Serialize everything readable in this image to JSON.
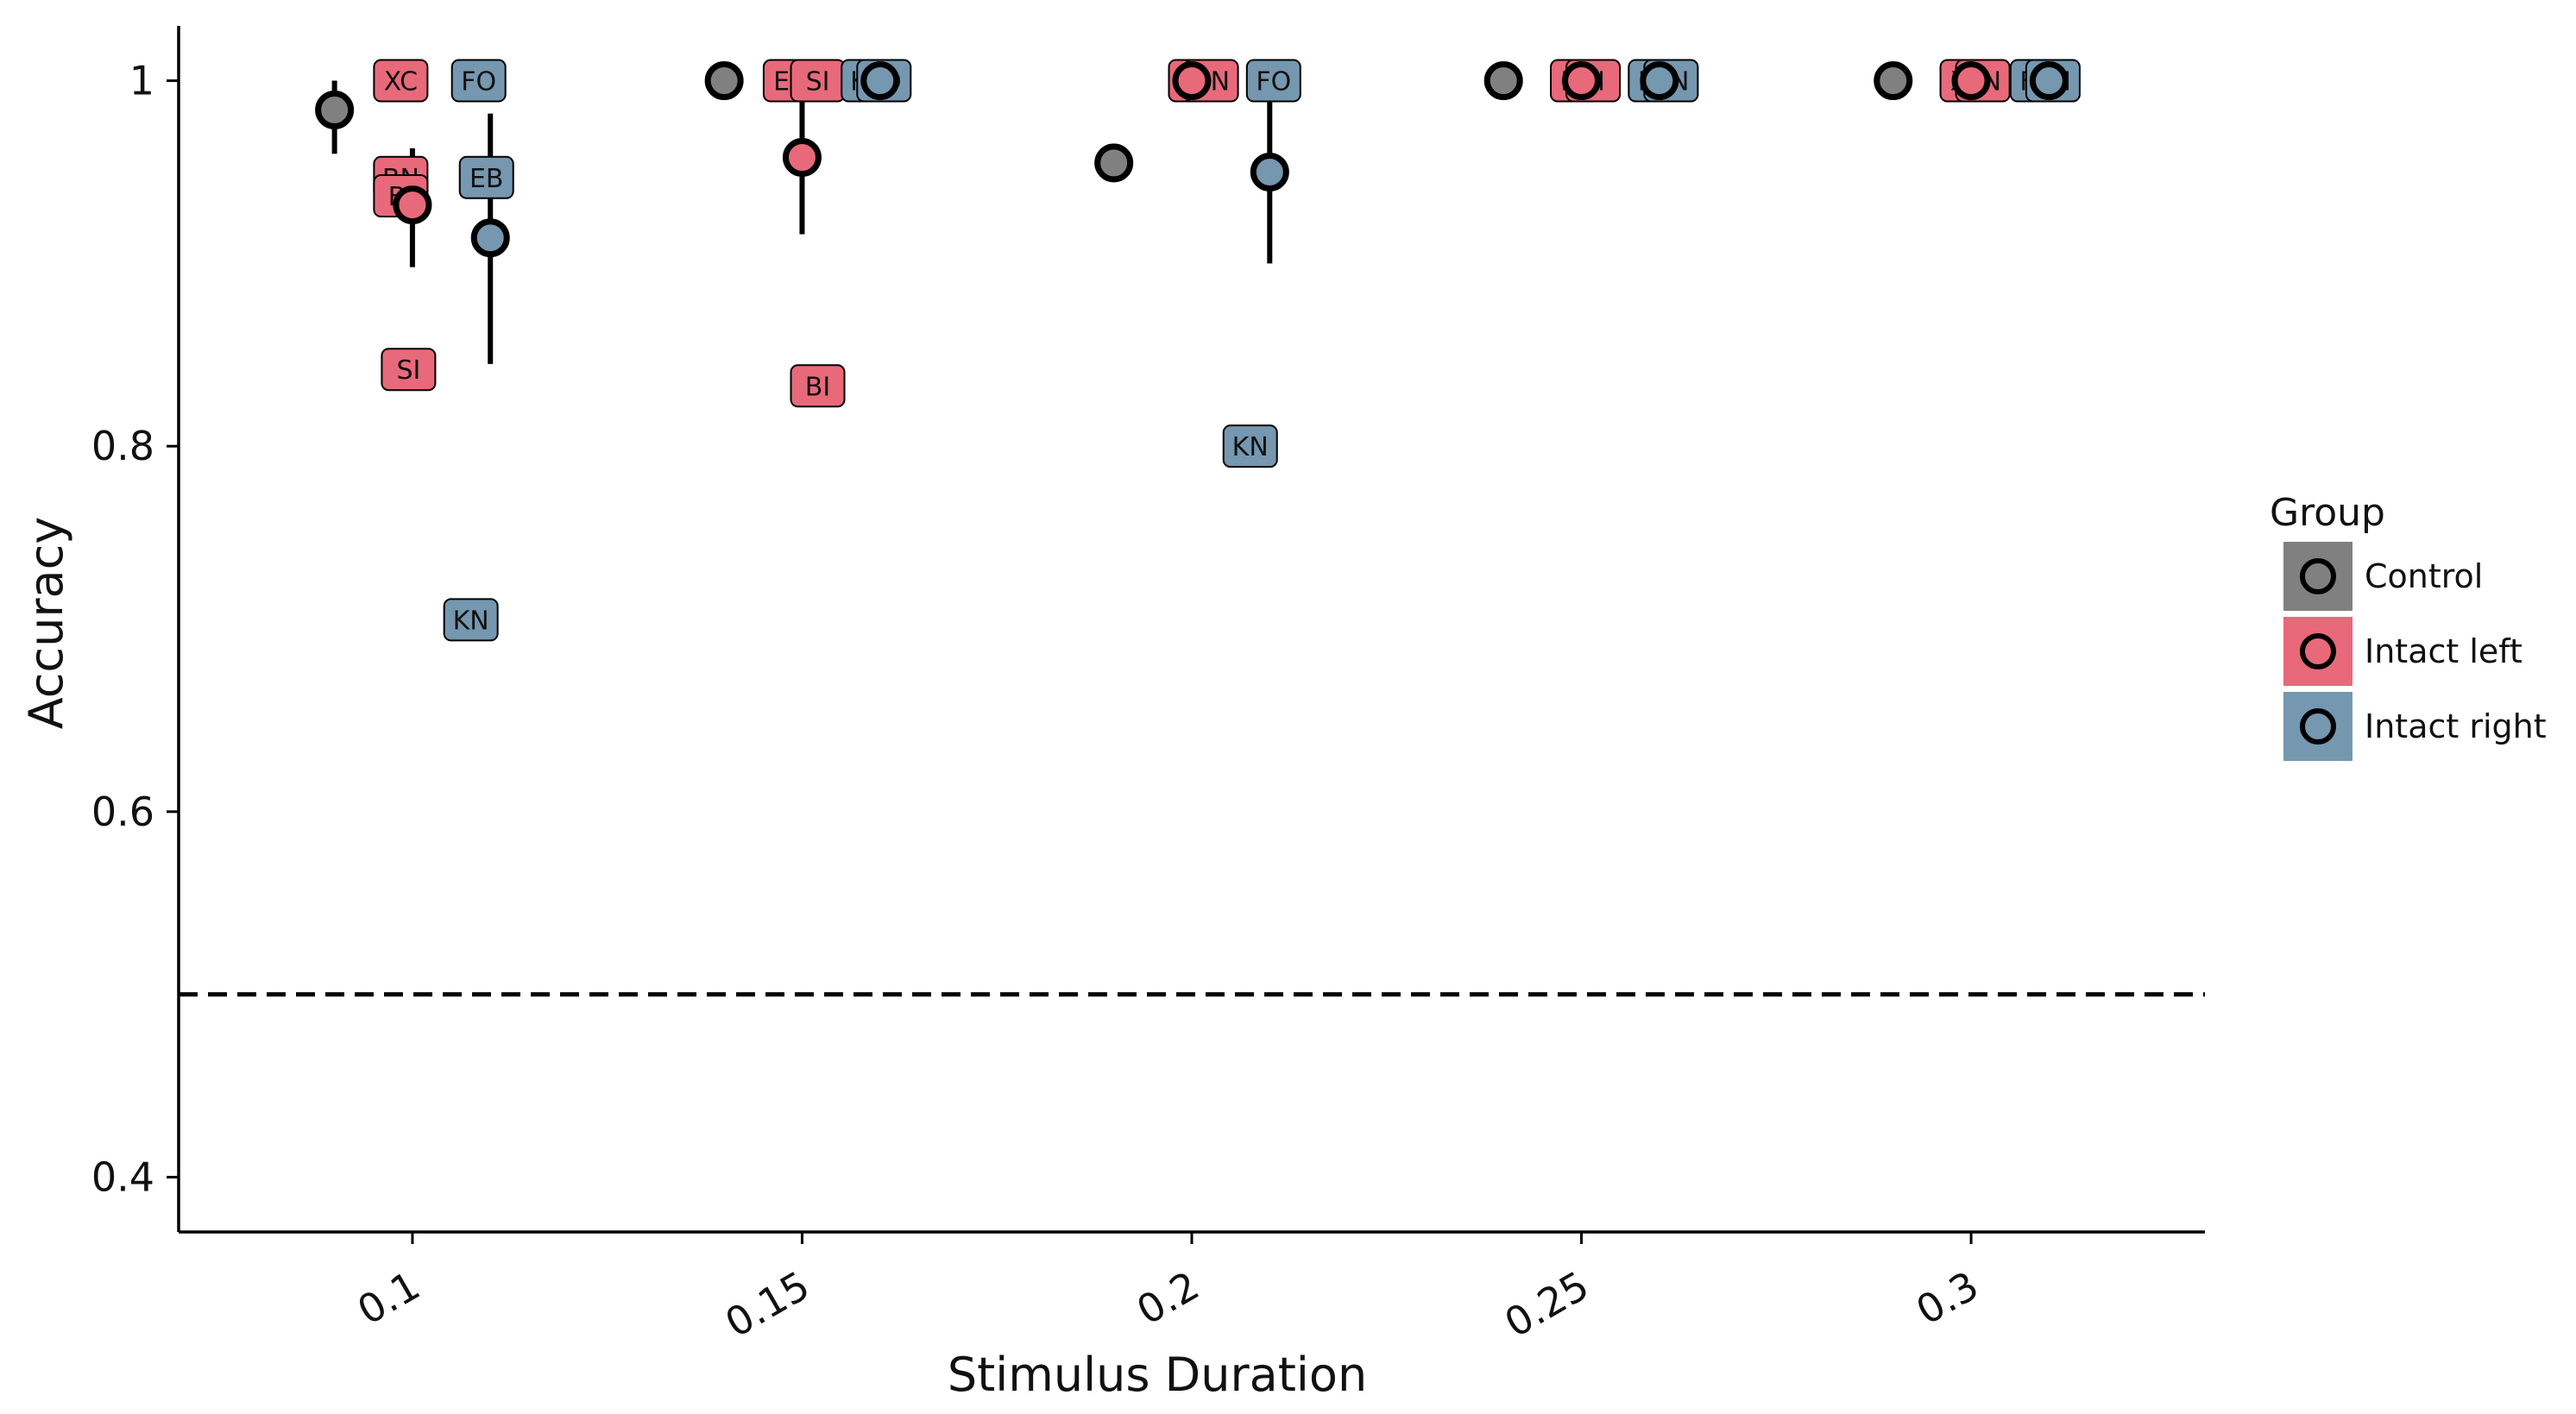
{
  "chart_data": {
    "type": "scatter",
    "xlabel": "Stimulus Duration",
    "ylabel": "Accuracy",
    "xlim": [
      0.07,
      0.33
    ],
    "ylim": [
      0.37,
      1.03
    ],
    "x_ticks": [
      0.1,
      0.15,
      0.2,
      0.25,
      0.3
    ],
    "x_tick_labels": [
      "0.1",
      "0.15",
      "0.2",
      "0.25",
      "0.3"
    ],
    "y_ticks": [
      0.4,
      0.6,
      0.8,
      1.0
    ],
    "y_tick_labels": [
      "0.4",
      "0.6",
      "0.8",
      "1"
    ],
    "reference_line": {
      "y": 0.5,
      "style": "dashed"
    },
    "grid": false,
    "legend": {
      "title": "Group",
      "placement": "right",
      "entries": [
        {
          "label": "Control",
          "color": "#808080"
        },
        {
          "label": "Intact left",
          "color": "#E8697A"
        },
        {
          "label": "Intact right",
          "color": "#7597AF"
        }
      ]
    },
    "series": [
      {
        "name": "Control",
        "color": "#808080",
        "points": [
          {
            "x": 0.09,
            "y": 0.984,
            "lo": 0.96,
            "hi": 1.0
          },
          {
            "x": 0.14,
            "y": 1.0
          },
          {
            "x": 0.19,
            "y": 0.955
          },
          {
            "x": 0.24,
            "y": 1.0
          },
          {
            "x": 0.29,
            "y": 1.0
          }
        ],
        "labels": []
      },
      {
        "name": "Intact left",
        "color": "#E8697A",
        "points": [
          {
            "x": 0.1,
            "y": 0.932,
            "lo": 0.898,
            "hi": 0.963
          },
          {
            "x": 0.15,
            "y": 0.958,
            "lo": 0.916,
            "hi": 1.0
          },
          {
            "x": 0.2,
            "y": 1.0
          },
          {
            "x": 0.25,
            "y": 1.0
          },
          {
            "x": 0.3,
            "y": 1.0
          }
        ],
        "labels": [
          {
            "text": "XC",
            "x": 0.0985,
            "y": 1.0
          },
          {
            "text": "BN",
            "x": 0.0985,
            "y": 0.947
          },
          {
            "text": "BI",
            "x": 0.0985,
            "y": 0.937
          },
          {
            "text": "SI",
            "x": 0.0995,
            "y": 0.842
          },
          {
            "text": "EB",
            "x": 0.1485,
            "y": 1.0
          },
          {
            "text": "SI",
            "x": 0.152,
            "y": 1.0
          },
          {
            "text": "BI",
            "x": 0.152,
            "y": 0.833
          },
          {
            "text": "XC",
            "x": 0.2005,
            "y": 1.0
          },
          {
            "text": "BN",
            "x": 0.2025,
            "y": 1.0
          },
          {
            "text": "EB",
            "x": 0.2495,
            "y": 1.0
          },
          {
            "text": "SI",
            "x": 0.2515,
            "y": 1.0
          },
          {
            "text": "XC",
            "x": 0.2995,
            "y": 1.0
          },
          {
            "text": "BN",
            "x": 0.3015,
            "y": 1.0
          }
        ]
      },
      {
        "name": "Intact right",
        "color": "#7597AF",
        "points": [
          {
            "x": 0.11,
            "y": 0.914,
            "lo": 0.845,
            "hi": 0.982
          },
          {
            "x": 0.16,
            "y": 1.0
          },
          {
            "x": 0.21,
            "y": 0.95,
            "lo": 0.9,
            "hi": 1.0
          },
          {
            "x": 0.26,
            "y": 1.0
          },
          {
            "x": 0.31,
            "y": 1.0
          }
        ],
        "labels": [
          {
            "text": "FO",
            "x": 0.1085,
            "y": 1.0
          },
          {
            "text": "EB",
            "x": 0.1095,
            "y": 0.947
          },
          {
            "text": "KN",
            "x": 0.1075,
            "y": 0.705
          },
          {
            "text": "KN",
            "x": 0.1585,
            "y": 1.0
          },
          {
            "text": "FO",
            "x": 0.1605,
            "y": 1.0
          },
          {
            "text": "FO",
            "x": 0.2105,
            "y": 1.0
          },
          {
            "text": "KN",
            "x": 0.2075,
            "y": 0.8
          },
          {
            "text": "FO",
            "x": 0.2595,
            "y": 1.0
          },
          {
            "text": "KN",
            "x": 0.2615,
            "y": 1.0
          },
          {
            "text": "FO",
            "x": 0.3085,
            "y": 1.0
          },
          {
            "text": "KN",
            "x": 0.3105,
            "y": 1.0
          }
        ]
      }
    ]
  }
}
